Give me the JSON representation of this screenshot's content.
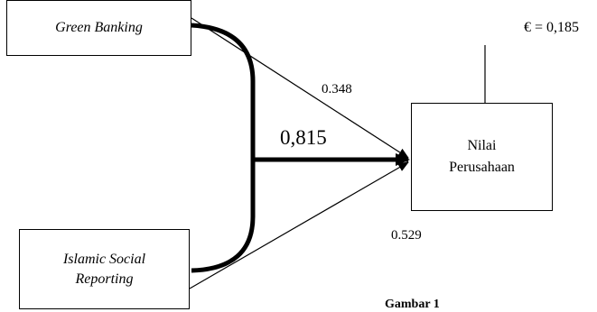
{
  "nodes": {
    "green_banking": "Green Banking",
    "islamic_social_reporting": "Islamic Social Reporting",
    "nilai_perusahaan_line1": "Nilai",
    "nilai_perusahaan_line2": "Perusahaan"
  },
  "paths": {
    "green_banking_coef": "0.348",
    "combined_coef": "0,815",
    "islamic_social_reporting_coef": "0.529"
  },
  "error_term": "€ = 0,185",
  "caption": "Gambar 1"
}
